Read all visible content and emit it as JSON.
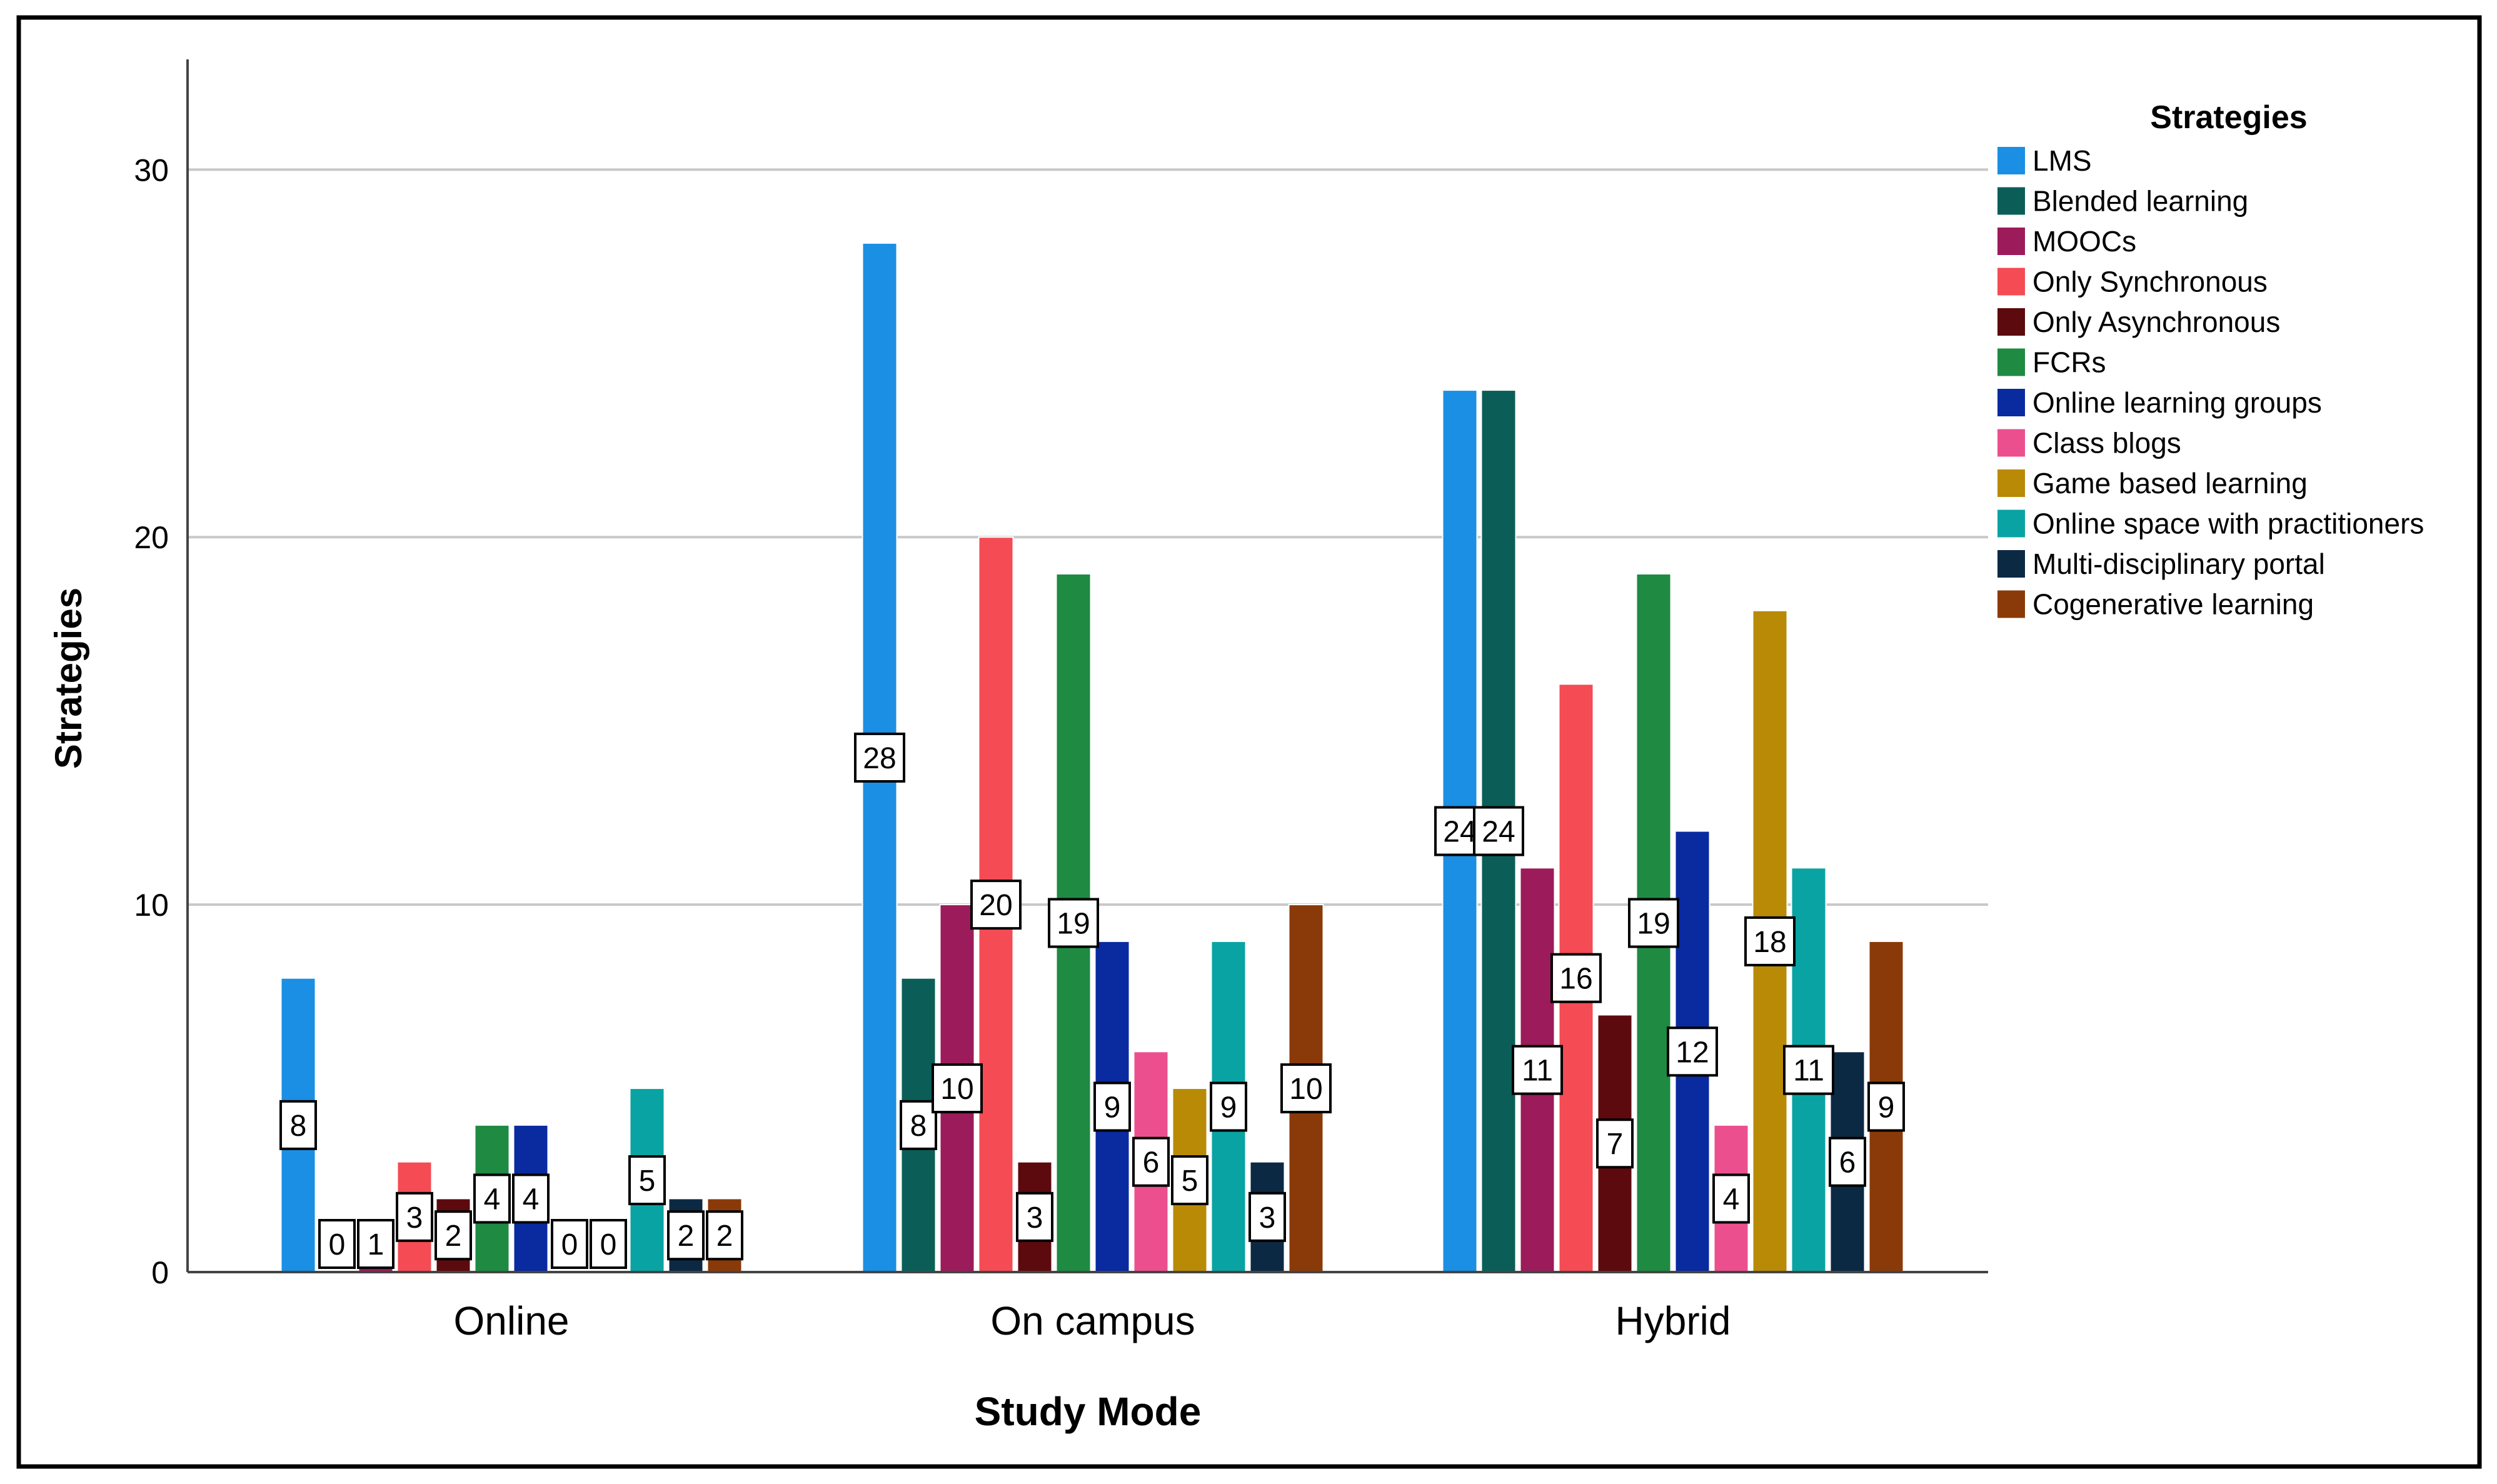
{
  "chart_data": {
    "type": "bar",
    "title": "",
    "xlabel": "Study Mode",
    "ylabel": "Strategies",
    "categories": [
      "Online",
      "On campus",
      "Hybrid"
    ],
    "ylim": [
      0,
      33
    ],
    "yticks": [
      0,
      10,
      20,
      30
    ],
    "grid": true,
    "legend_title": "Strategies",
    "legend_position": "right",
    "series": [
      {
        "name": "LMS",
        "color": "#1a8fe3",
        "values": [
          8,
          28,
          24
        ]
      },
      {
        "name": "Blended learning",
        "color": "#0b5e58",
        "values": [
          0,
          8,
          24
        ]
      },
      {
        "name": "MOOCs",
        "color": "#9c1b5a",
        "values": [
          1,
          10,
          11
        ]
      },
      {
        "name": "Only Synchronous",
        "color": "#f44b55",
        "values": [
          3,
          20,
          16
        ]
      },
      {
        "name": "Only Asynchronous",
        "color": "#5c0a0e",
        "values": [
          2,
          3,
          7
        ]
      },
      {
        "name": "FCRs",
        "color": "#1e8a42",
        "values": [
          4,
          19,
          19
        ]
      },
      {
        "name": "Online learning groups",
        "color": "#0a2aa0",
        "values": [
          4,
          9,
          12
        ]
      },
      {
        "name": "Class blogs",
        "color": "#ec4f8e",
        "values": [
          0,
          6,
          4
        ]
      },
      {
        "name": "Game based learning",
        "color": "#b88a06",
        "values": [
          0,
          5,
          18
        ]
      },
      {
        "name": "Online space with practitioners",
        "color": "#0aa3a3",
        "values": [
          5,
          9,
          11
        ]
      },
      {
        "name": "Multi-disciplinary portal",
        "color": "#0c2944",
        "values": [
          2,
          3,
          6
        ]
      },
      {
        "name": "Cogenerative learning",
        "color": "#8a3a08",
        "values": [
          2,
          10,
          9
        ]
      }
    ]
  }
}
